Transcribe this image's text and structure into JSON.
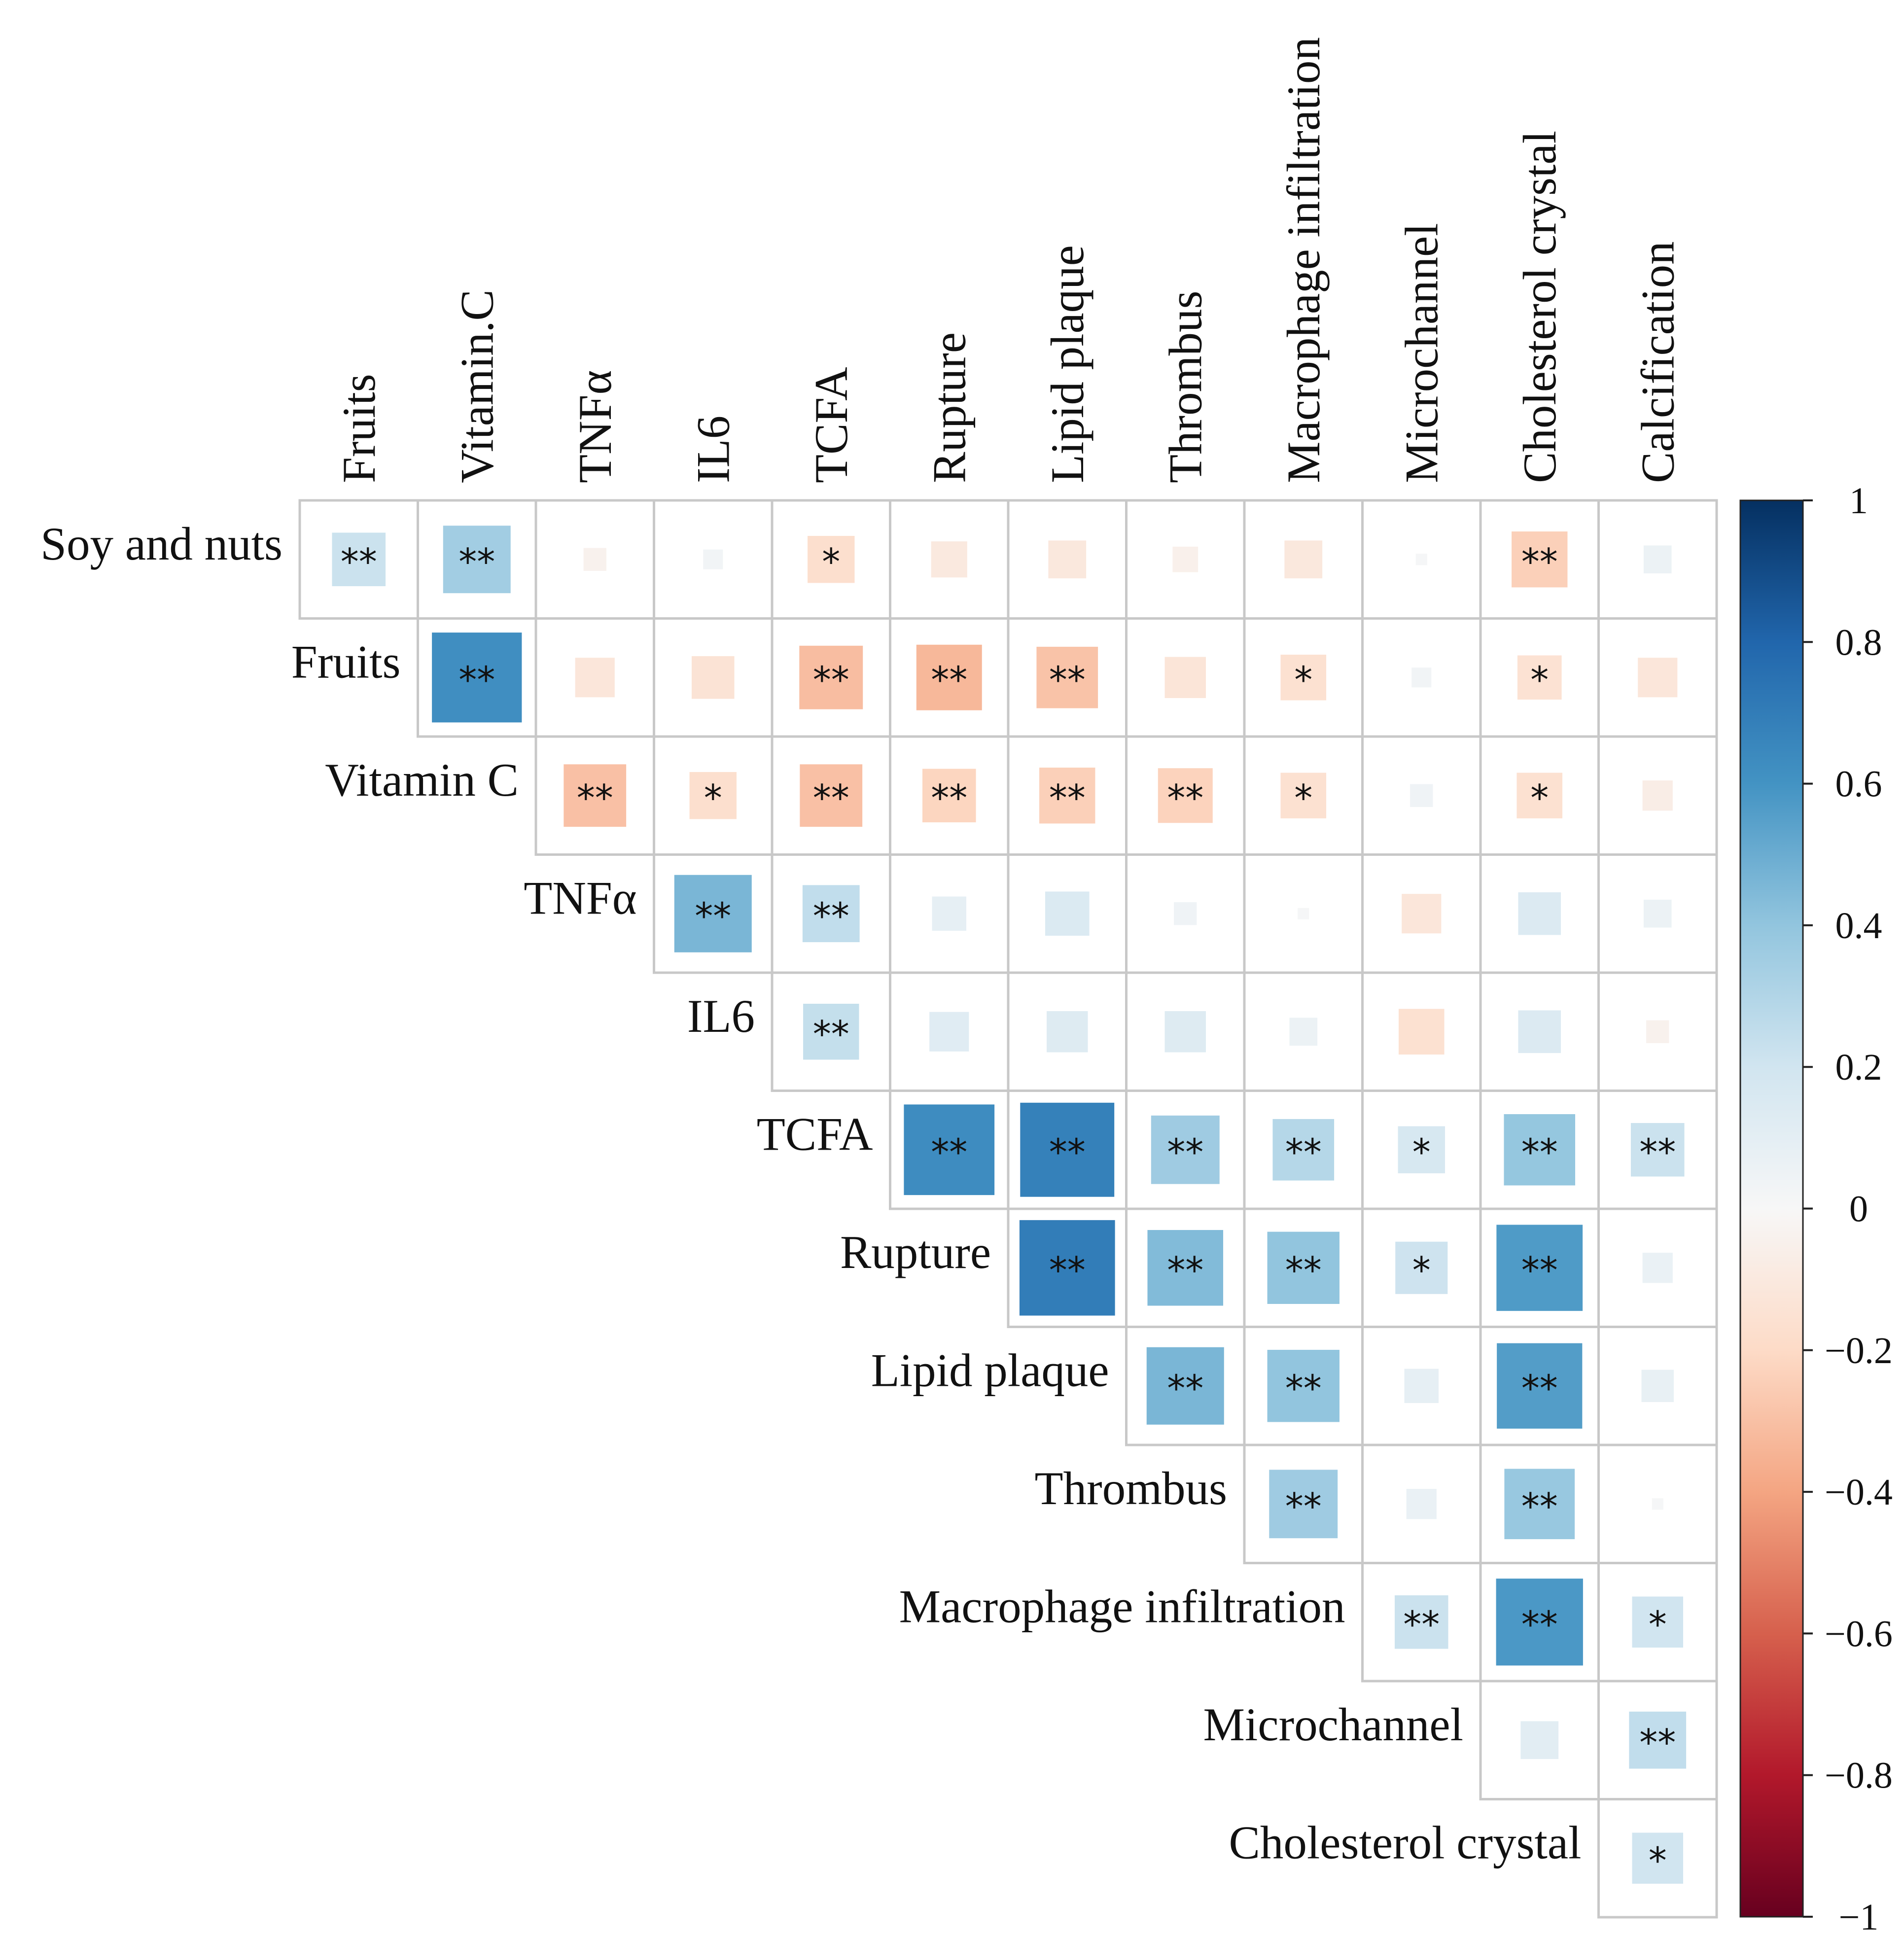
{
  "chart_data": {
    "type": "heatmap",
    "subtype": "upper-triangular correlation matrix",
    "title": "",
    "column_labels": [
      "Fruits",
      "Vitamin.C",
      "TNFα",
      "IL6",
      "TCFA",
      "Rupture",
      "Lipid plaque",
      "Thrombus",
      "Macrophage infiltration",
      "Microchannel",
      "Cholesterol crystal",
      "Calcification"
    ],
    "row_labels": [
      "Soy and nuts",
      "Fruits",
      "Vitamin C",
      "TNFα",
      "IL6",
      "TCFA",
      "Rupture",
      "Lipid plaque",
      "Thrombus",
      "Macrophage infiltration",
      "Microchannel",
      "Cholesterol crystal"
    ],
    "values": [
      [
        0.22,
        0.35,
        -0.04,
        0.03,
        -0.17,
        -0.1,
        -0.11,
        -0.05,
        -0.11,
        0.01,
        -0.24,
        0.06
      ],
      [
        null,
        0.62,
        -0.12,
        -0.14,
        -0.31,
        -0.33,
        -0.29,
        -0.13,
        -0.16,
        0.03,
        -0.15,
        -0.12
      ],
      [
        null,
        null,
        -0.3,
        -0.17,
        -0.3,
        -0.22,
        -0.24,
        -0.23,
        -0.16,
        0.04,
        -0.16,
        -0.07
      ],
      [
        null,
        null,
        null,
        0.46,
        0.25,
        0.09,
        0.15,
        0.04,
        0.01,
        -0.12,
        0.14,
        0.06
      ],
      [
        null,
        null,
        null,
        null,
        0.24,
        0.12,
        0.13,
        0.13,
        0.06,
        -0.16,
        0.14,
        -0.04
      ],
      [
        null,
        null,
        null,
        null,
        null,
        0.63,
        0.68,
        0.36,
        0.29,
        0.17,
        0.39,
        0.22
      ],
      [
        null,
        null,
        null,
        null,
        null,
        null,
        0.7,
        0.44,
        0.4,
        0.21,
        0.57,
        0.07
      ],
      [
        null,
        null,
        null,
        null,
        null,
        null,
        null,
        0.46,
        0.4,
        0.09,
        0.56,
        0.08
      ],
      [
        null,
        null,
        null,
        null,
        null,
        null,
        null,
        null,
        0.36,
        0.07,
        0.38,
        0.01
      ],
      [
        null,
        null,
        null,
        null,
        null,
        null,
        null,
        null,
        null,
        0.22,
        0.58,
        0.2
      ],
      [
        null,
        null,
        null,
        null,
        null,
        null,
        null,
        null,
        null,
        null,
        0.11,
        0.25
      ],
      [
        null,
        null,
        null,
        null,
        null,
        null,
        null,
        null,
        null,
        null,
        null,
        0.2
      ]
    ],
    "significance": [
      [
        "**",
        "**",
        "",
        "",
        "*",
        "",
        "",
        "",
        "",
        "",
        "**",
        ""
      ],
      [
        null,
        "**",
        "",
        "",
        "**",
        "**",
        "**",
        "",
        "*",
        "",
        "*",
        ""
      ],
      [
        null,
        null,
        "**",
        "*",
        "**",
        "**",
        "**",
        "**",
        "*",
        "",
        "*",
        ""
      ],
      [
        null,
        null,
        null,
        "**",
        "**",
        "",
        "",
        "",
        "",
        "",
        "",
        ""
      ],
      [
        null,
        null,
        null,
        null,
        "**",
        "",
        "",
        "",
        "",
        "",
        "",
        ""
      ],
      [
        null,
        null,
        null,
        null,
        null,
        "**",
        "**",
        "**",
        "**",
        "*",
        "**",
        "**"
      ],
      [
        null,
        null,
        null,
        null,
        null,
        null,
        "**",
        "**",
        "**",
        "*",
        "**",
        ""
      ],
      [
        null,
        null,
        null,
        null,
        null,
        null,
        null,
        "**",
        "**",
        "",
        "**",
        ""
      ],
      [
        null,
        null,
        null,
        null,
        null,
        null,
        null,
        null,
        "**",
        "",
        "**",
        ""
      ],
      [
        null,
        null,
        null,
        null,
        null,
        null,
        null,
        null,
        null,
        "**",
        "**",
        "*"
      ],
      [
        null,
        null,
        null,
        null,
        null,
        null,
        null,
        null,
        null,
        null,
        "",
        "**"
      ],
      [
        null,
        null,
        null,
        null,
        null,
        null,
        null,
        null,
        null,
        null,
        null,
        "*"
      ]
    ],
    "colorbar": {
      "range": [
        -1,
        1
      ],
      "ticks": [
        1,
        0.8,
        0.6,
        0.4,
        0.2,
        0,
        -0.2,
        -0.4,
        -0.6,
        -0.8,
        -1
      ],
      "tick_labels": [
        "1",
        "0.8",
        "0.6",
        "0.4",
        "0.2",
        "0",
        "−0.2",
        "−0.4",
        "−0.6",
        "−0.8",
        "−1"
      ],
      "colormap": [
        "#67001f",
        "#b2182b",
        "#d6604d",
        "#f4a582",
        "#fddbc7",
        "#f7f7f7",
        "#d1e5f0",
        "#92c5de",
        "#4393c3",
        "#2166ac",
        "#053061"
      ]
    }
  }
}
